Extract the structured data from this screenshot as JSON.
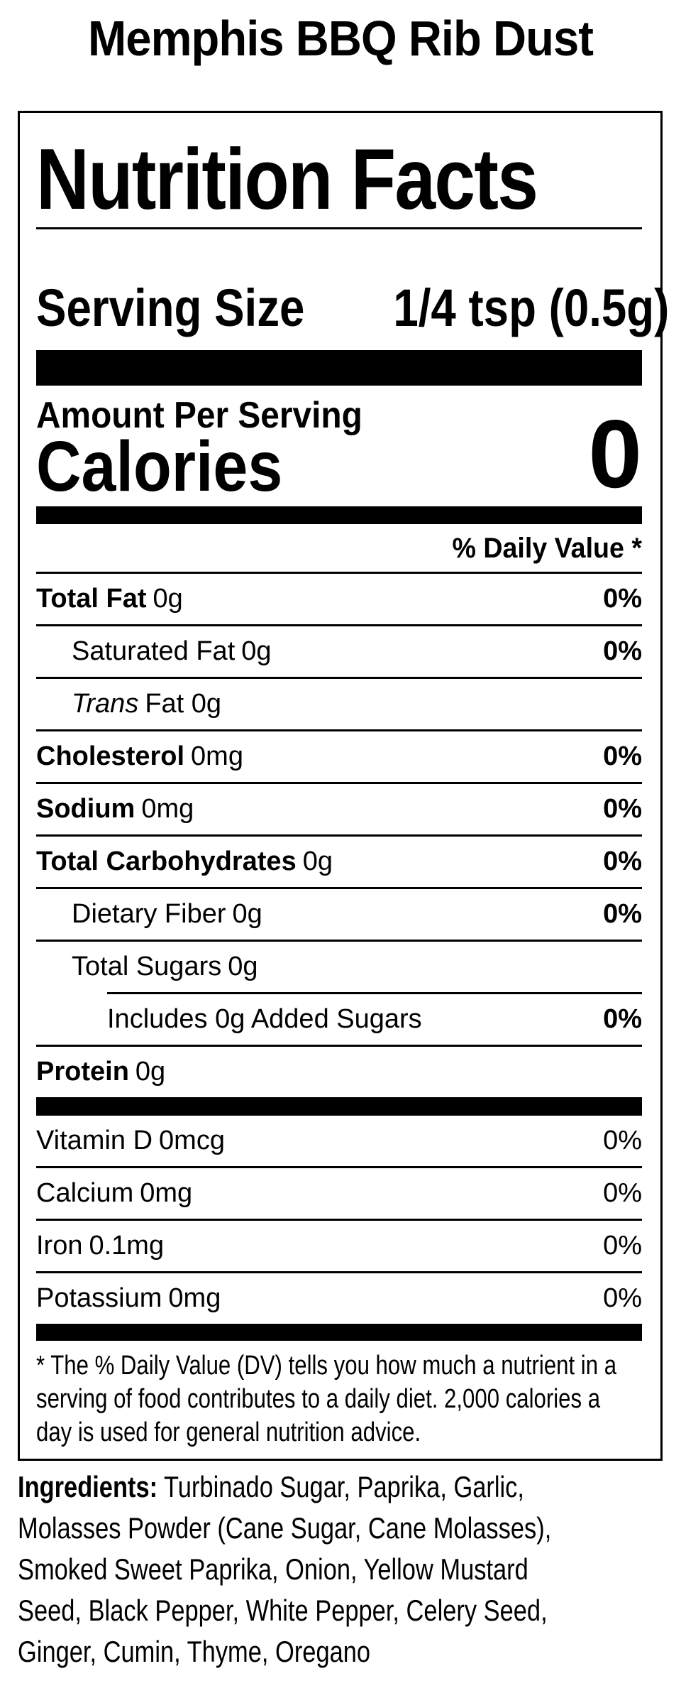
{
  "product": {
    "title": "Memphis BBQ Rib Dust"
  },
  "label": {
    "heading": "Nutrition Facts",
    "serving_label": "Serving Size",
    "serving_value": "1/4 tsp (0.5g)",
    "amount_per_serving": "Amount Per Serving",
    "calories_label": "Calories",
    "calories_value": "0",
    "daily_value_header": "% Daily Value *",
    "rows": [
      {
        "name": "Total Fat",
        "amount": "0g",
        "dv": "0%"
      },
      {
        "name": "Saturated Fat",
        "amount": "0g",
        "dv": "0%"
      },
      {
        "name": "Trans",
        "amount": "Fat 0g",
        "dv": ""
      },
      {
        "name": "Cholesterol",
        "amount": "0mg",
        "dv": "0%"
      },
      {
        "name": "Sodium",
        "amount": "0mg",
        "dv": "0%"
      },
      {
        "name": "Total Carbohydrates",
        "amount": "0g",
        "dv": "0%"
      },
      {
        "name": "Dietary Fiber",
        "amount": "0g",
        "dv": "0%"
      },
      {
        "name": "Total Sugars",
        "amount": "0g",
        "dv": ""
      },
      {
        "name": "Includes 0g Added Sugars",
        "amount": "",
        "dv": "0%"
      },
      {
        "name": "Protein",
        "amount": "0g",
        "dv": ""
      }
    ],
    "vitamins": [
      {
        "name": "Vitamin D",
        "amount": "0mcg",
        "dv": "0%"
      },
      {
        "name": "Calcium",
        "amount": "0mg",
        "dv": "0%"
      },
      {
        "name": "Iron",
        "amount": "0.1mg",
        "dv": "0%"
      },
      {
        "name": "Potassium",
        "amount": "0mg",
        "dv": "0%"
      }
    ],
    "footnote_lines": [
      "* The % Daily Value (DV) tells you how much a nutrient in a",
      "serving of food contributes to a daily diet. 2,000 calories a",
      "day is used for general nutrition advice."
    ]
  },
  "ingredients": {
    "label": "Ingredients:",
    "lines": [
      "Turbinado Sugar, Paprika, Garlic,",
      "Molasses Powder (Cane Sugar, Cane Molasses),",
      "Smoked Sweet Paprika, Onion, Yellow Mustard",
      "Seed, Black Pepper, White Pepper, Celery Seed,",
      "Ginger, Cumin, Thyme, Oregano"
    ]
  },
  "colors": {
    "ink": "#000000",
    "paper": "#ffffff"
  }
}
